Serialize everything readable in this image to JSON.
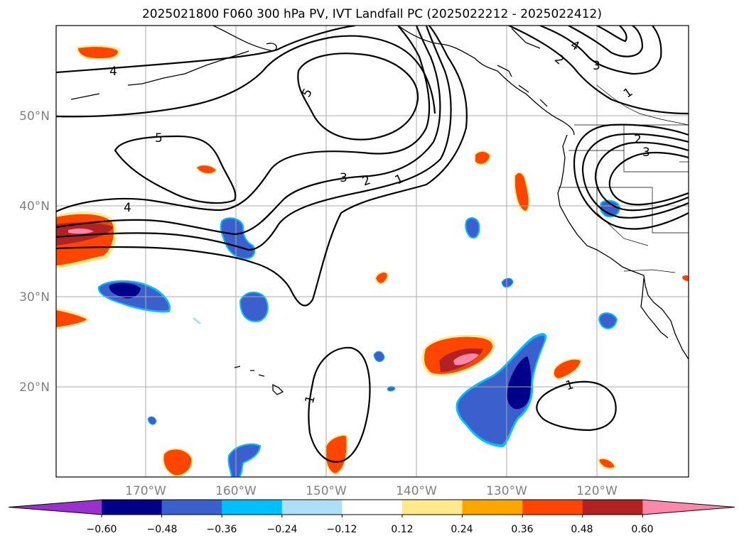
{
  "title": "2025021800 F060 300 hPa PV, IVT Landfall PC (2025022212 - 2025022412)",
  "lon_labels": [
    "170°W",
    "160°W",
    "150°W",
    "140°W",
    "130°W",
    "120°W"
  ],
  "lat_labels": [
    "50°N",
    "40°N",
    "30°N",
    "20°N"
  ],
  "contour_labels": [
    "4",
    "5",
    "5",
    "4",
    "3",
    "2",
    "1",
    "4",
    "3",
    "2",
    "1",
    "2",
    "3",
    "1",
    "1"
  ],
  "colorbar": {
    "ticks": [
      "−0.60",
      "−0.48",
      "−0.36",
      "−0.24",
      "−0.12",
      "0.12",
      "0.24",
      "0.36",
      "0.48",
      "0.60"
    ],
    "colors": [
      "#9932CC",
      "#00008B",
      "#3B5FCD",
      "#00BFFF",
      "#ADE0F8",
      "#FFFFFF",
      "#FFE98A",
      "#FFA500",
      "#FF4500",
      "#B22222",
      "#FF88AA"
    ]
  },
  "chart_data": {
    "type": "heatmap",
    "title": "2025021800 F060 300 hPa PV, IVT Landfall PC (2025022212 - 2025022412)",
    "fill_field": "IVT landfall principal component",
    "contour_field": "300 hPa PV",
    "contour_levels": [
      1,
      2,
      3,
      4,
      5
    ],
    "fill_levels": [
      -0.6,
      -0.48,
      -0.36,
      -0.24,
      -0.12,
      0.12,
      0.24,
      0.36,
      0.48,
      0.6
    ],
    "xlim": [
      -180,
      -110
    ],
    "ylim": [
      10,
      60
    ],
    "x_ticks": [
      -170,
      -160,
      -150,
      -140,
      -130,
      -120
    ],
    "y_ticks": [
      50,
      40,
      30,
      20
    ],
    "grid": true,
    "colorbar": "bottom"
  }
}
